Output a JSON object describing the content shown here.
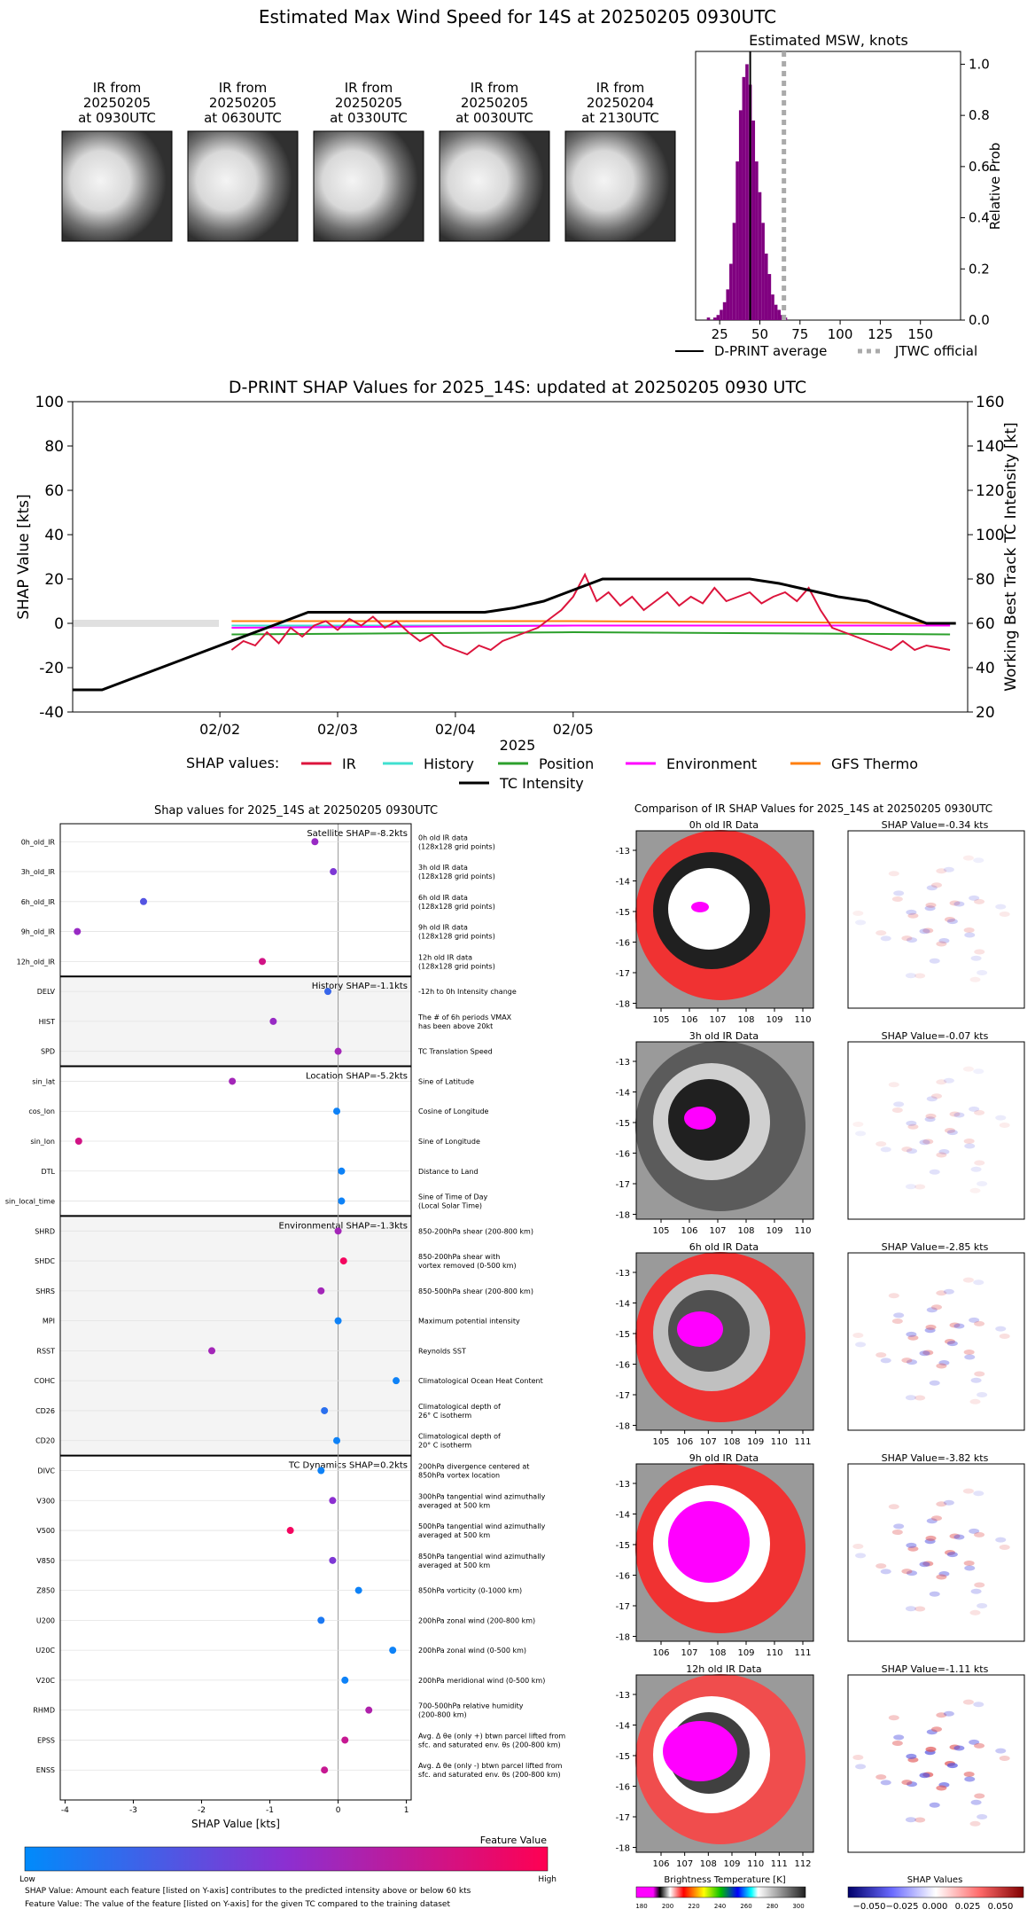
{
  "header": {
    "title": "Estimated Max Wind Speed for 14S at 20250205 0930UTC"
  },
  "ir_thumbs": [
    {
      "l1": "IR from",
      "l2": "20250205",
      "l3": "at 0930UTC"
    },
    {
      "l1": "IR from",
      "l2": "20250205",
      "l3": "at 0630UTC"
    },
    {
      "l1": "IR from",
      "l2": "20250205",
      "l3": "at 0330UTC"
    },
    {
      "l1": "IR from",
      "l2": "20250205",
      "l3": "at 0030UTC"
    },
    {
      "l1": "IR from",
      "l2": "20250204",
      "l3": "at 2130UTC"
    }
  ],
  "msw": {
    "title": "Estimated MSW, knots",
    "ylabel": "Relative Prob",
    "xticks": [
      "25",
      "50",
      "75",
      "100",
      "125",
      "150"
    ],
    "yticks": [
      "0.0",
      "0.2",
      "0.4",
      "0.6",
      "0.8",
      "1.0"
    ],
    "legend_avg": "D-PRINT average",
    "legend_jtwc": "JTWC official"
  },
  "shap_ts": {
    "title": "D-PRINT SHAP Values for 2025_14S: updated at 20250205 0930 UTC",
    "ylabel_left": "SHAP Value [kts]",
    "ylabel_right": "Working Best Track TC Intensity [kt]",
    "xlabel": "2025",
    "yticks_left": [
      "100",
      "80",
      "60",
      "40",
      "20",
      "0",
      "-20",
      "-40"
    ],
    "yticks_right": [
      "160",
      "140",
      "120",
      "100",
      "80",
      "60",
      "40",
      "20"
    ],
    "xticks": [
      "02/02",
      "02/03",
      "02/04",
      "02/05"
    ],
    "legend_title": "SHAP values:",
    "legend": [
      {
        "label": "IR",
        "color": "#dc143c"
      },
      {
        "label": "History",
        "color": "#40e0d0"
      },
      {
        "label": "Position",
        "color": "#2ca02c"
      },
      {
        "label": "Environment",
        "color": "#ff00ff"
      },
      {
        "label": "GFS Thermo",
        "color": "#ff7f0e"
      },
      {
        "label": "TC Intensity",
        "color": "#000000"
      }
    ]
  },
  "shap_feat": {
    "title": "Shap values for 2025_14S at 20250205 0930UTC",
    "xlabel": "SHAP Value [kts]",
    "xticks": [
      "-4",
      "-3",
      "-2",
      "-1",
      "0",
      "1"
    ],
    "groups": [
      {
        "label": "Satellite SHAP=-8.2kts"
      },
      {
        "label": "History SHAP=-1.1kts"
      },
      {
        "label": "Location SHAP=-5.2kts"
      },
      {
        "label": "Environmental SHAP=-1.3kts"
      },
      {
        "label": "TC Dynamics SHAP=0.2kts"
      }
    ],
    "features": [
      {
        "name": "0h_old_IR",
        "d1": "0h old IR data",
        "d2": "(128x128 grid points)"
      },
      {
        "name": "3h_old_IR",
        "d1": "3h old IR data",
        "d2": "(128x128 grid points)"
      },
      {
        "name": "6h_old_IR",
        "d1": "6h old IR data",
        "d2": "(128x128 grid points)"
      },
      {
        "name": "9h_old_IR",
        "d1": "9h old IR data",
        "d2": "(128x128 grid points)"
      },
      {
        "name": "12h_old_IR",
        "d1": "12h old IR data",
        "d2": "(128x128 grid points)"
      },
      {
        "name": "DELV",
        "d1": "-12h to 0h Intensity change",
        "d2": ""
      },
      {
        "name": "HIST",
        "d1": "The # of 6h periods VMAX",
        "d2": "has been above 20kt"
      },
      {
        "name": "SPD",
        "d1": "TC Translation Speed",
        "d2": ""
      },
      {
        "name": "sin_lat",
        "d1": "Sine of Latitude",
        "d2": ""
      },
      {
        "name": "cos_lon",
        "d1": "Cosine of Longitude",
        "d2": ""
      },
      {
        "name": "sin_lon",
        "d1": "Sine of Longitude",
        "d2": ""
      },
      {
        "name": "DTL",
        "d1": "Distance to Land",
        "d2": ""
      },
      {
        "name": "sin_local_time",
        "d1": "Sine of Time of Day",
        "d2": "(Local Solar Time)"
      },
      {
        "name": "SHRD",
        "d1": "850-200hPa shear (200-800 km)",
        "d2": ""
      },
      {
        "name": "SHDC",
        "d1": "850-200hPa shear with",
        "d2": "vortex removed (0-500 km)"
      },
      {
        "name": "SHRS",
        "d1": "850-500hPa shear (200-800 km)",
        "d2": ""
      },
      {
        "name": "MPI",
        "d1": "Maximum potential intensity",
        "d2": ""
      },
      {
        "name": "RSST",
        "d1": "Reynolds SST",
        "d2": ""
      },
      {
        "name": "COHC",
        "d1": "Climatological Ocean Heat Content",
        "d2": ""
      },
      {
        "name": "CD26",
        "d1": "Climatological depth of",
        "d2": "26° C isotherm"
      },
      {
        "name": "CD20",
        "d1": "Climatological depth of",
        "d2": "20° C isotherm"
      },
      {
        "name": "DIVC",
        "d1": "200hPa divergence centered at",
        "d2": "850hPa vortex location"
      },
      {
        "name": "V300",
        "d1": "300hPa tangential wind azimuthally",
        "d2": "averaged at 500 km"
      },
      {
        "name": "V500",
        "d1": "500hPa tangential wind azimuthally",
        "d2": "averaged at 500 km"
      },
      {
        "name": "V850",
        "d1": "850hPa tangential wind azimuthally",
        "d2": "averaged at 500 km"
      },
      {
        "name": "Z850",
        "d1": "850hPa vorticity (0-1000 km)",
        "d2": ""
      },
      {
        "name": "U200",
        "d1": "200hPa zonal wind (200-800 km)",
        "d2": ""
      },
      {
        "name": "U20C",
        "d1": "200hPa zonal wind (0-500 km)",
        "d2": ""
      },
      {
        "name": "V20C",
        "d1": "200hPa meridional wind (0-500 km)",
        "d2": ""
      },
      {
        "name": "RHMD",
        "d1": "700-500hPa relative humidity",
        "d2": "(200-800 km)"
      },
      {
        "name": "EPSS",
        "d1": "Avg. Δ θe (only +) btwn parcel lifted from",
        "d2": "sfc. and saturated env. θs (200-800 km)"
      },
      {
        "name": "ENSS",
        "d1": "Avg. Δ θe (only -) btwn parcel lifted from",
        "d2": "sfc. and saturated env. θs (200-800 km)"
      }
    ],
    "colorbar_title": "Feature Value",
    "colorbar_low": "Low",
    "colorbar_high": "High",
    "footnote1": "SHAP Value: Amount each feature [listed on Y-axis] contributes to the predicted intensity above or below 60 kts",
    "footnote2": "Feature Value: The value of the feature [listed on Y-axis] for the given TC compared to the training dataset"
  },
  "ir_compare": {
    "title": "Comparison of IR SHAP Values for 2025_14S at 20250205 0930UTC",
    "rows": [
      {
        "ir_title": "0h old IR Data",
        "shap_title": "SHAP Value=-0.34 kts",
        "xticks": [
          "105",
          "106",
          "107",
          "108",
          "109",
          "110"
        ]
      },
      {
        "ir_title": "3h old IR Data",
        "shap_title": "SHAP Value=-0.07 kts",
        "xticks": [
          "105",
          "106",
          "107",
          "108",
          "109",
          "110"
        ]
      },
      {
        "ir_title": "6h old IR Data",
        "shap_title": "SHAP Value=-2.85 kts",
        "xticks": [
          "105",
          "106",
          "107",
          "108",
          "109",
          "110",
          "111"
        ]
      },
      {
        "ir_title": "9h old IR Data",
        "shap_title": "SHAP Value=-3.82 kts",
        "xticks": [
          "106",
          "107",
          "108",
          "109",
          "110",
          "111"
        ]
      },
      {
        "ir_title": "12h old IR Data",
        "shap_title": "SHAP Value=-1.11 kts",
        "xticks": [
          "106",
          "107",
          "108",
          "109",
          "110",
          "111",
          "112"
        ]
      }
    ],
    "yticks": [
      "-13",
      "-14",
      "-15",
      "-16",
      "-17",
      "-18"
    ],
    "cbar_bt_title": "Brightness Temperature [K]",
    "cbar_bt_ticks": [
      "180",
      "200",
      "220",
      "240",
      "260",
      "280",
      "300"
    ],
    "cbar_shap_title": "SHAP Values",
    "cbar_shap_ticks": [
      "−0.050",
      "−0.025",
      "0.000",
      "0.025",
      "0.050"
    ]
  },
  "chart_data": [
    {
      "type": "bar",
      "title": "Estimated MSW, knots",
      "xlabel": "",
      "ylabel": "Relative Prob",
      "xlim": [
        10,
        175
      ],
      "ylim": [
        0,
        1.05
      ],
      "bin_width": 2,
      "bins": [
        [
          18,
          0.01
        ],
        [
          22,
          0.01
        ],
        [
          24,
          0.02
        ],
        [
          26,
          0.04
        ],
        [
          28,
          0.07
        ],
        [
          30,
          0.12
        ],
        [
          32,
          0.22
        ],
        [
          34,
          0.38
        ],
        [
          36,
          0.62
        ],
        [
          38,
          0.82
        ],
        [
          40,
          0.95
        ],
        [
          42,
          1.0
        ],
        [
          44,
          0.92
        ],
        [
          46,
          0.78
        ],
        [
          48,
          0.62
        ],
        [
          50,
          0.5
        ],
        [
          52,
          0.38
        ],
        [
          54,
          0.26
        ],
        [
          56,
          0.18
        ],
        [
          58,
          0.1
        ],
        [
          60,
          0.06
        ],
        [
          62,
          0.04
        ],
        [
          64,
          0.02
        ],
        [
          66,
          0.01
        ]
      ],
      "dprint_average": 44,
      "jtwc_official": 65
    },
    {
      "type": "line",
      "title": "D-PRINT SHAP Values for 2025_14S: updated at 20250205 0930 UTC",
      "xlabel": "2025",
      "ylabel": "SHAP Value [kts]",
      "ylim": [
        -40,
        100
      ],
      "y2label": "Working Best Track TC Intensity [kt]",
      "y2lim": [
        20,
        160
      ],
      "x_unit": "days since 02/02 00UTC",
      "series": [
        {
          "name": "TC Intensity",
          "axis": "right",
          "points": [
            [
              -1.25,
              30
            ],
            [
              -1.0,
              30
            ],
            [
              -0.75,
              35
            ],
            [
              -0.5,
              40
            ],
            [
              -0.25,
              45
            ],
            [
              0.0,
              50
            ],
            [
              0.25,
              55
            ],
            [
              0.5,
              60
            ],
            [
              0.75,
              65
            ],
            [
              1.0,
              65
            ],
            [
              1.25,
              65
            ],
            [
              1.5,
              65
            ],
            [
              1.75,
              65
            ],
            [
              2.0,
              65
            ],
            [
              2.25,
              65
            ],
            [
              2.5,
              67
            ],
            [
              2.75,
              70
            ],
            [
              3.0,
              75
            ],
            [
              3.25,
              80
            ],
            [
              3.5,
              80
            ],
            [
              3.75,
              80
            ],
            [
              4.0,
              80
            ],
            [
              4.25,
              80
            ],
            [
              4.5,
              80
            ],
            [
              4.75,
              78
            ],
            [
              5.0,
              75
            ],
            [
              5.25,
              72
            ],
            [
              5.5,
              70
            ],
            [
              5.75,
              65
            ],
            [
              6.0,
              60
            ],
            [
              6.25,
              60
            ]
          ]
        },
        {
          "name": "IR",
          "axis": "left",
          "points": [
            [
              0.1,
              -12
            ],
            [
              0.2,
              -8
            ],
            [
              0.3,
              -10
            ],
            [
              0.4,
              -4
            ],
            [
              0.5,
              -9
            ],
            [
              0.6,
              -2
            ],
            [
              0.7,
              -6
            ],
            [
              0.8,
              -1
            ],
            [
              0.9,
              1
            ],
            [
              1.0,
              -3
            ],
            [
              1.1,
              2
            ],
            [
              1.2,
              -1
            ],
            [
              1.3,
              3
            ],
            [
              1.4,
              -2
            ],
            [
              1.5,
              1
            ],
            [
              1.6,
              -4
            ],
            [
              1.7,
              -8
            ],
            [
              1.8,
              -5
            ],
            [
              1.9,
              -10
            ],
            [
              2.0,
              -12
            ],
            [
              2.1,
              -14
            ],
            [
              2.2,
              -10
            ],
            [
              2.3,
              -12
            ],
            [
              2.4,
              -8
            ],
            [
              2.5,
              -6
            ],
            [
              2.6,
              -4
            ],
            [
              2.7,
              -2
            ],
            [
              2.8,
              2
            ],
            [
              2.9,
              6
            ],
            [
              3.0,
              12
            ],
            [
              3.1,
              22
            ],
            [
              3.2,
              10
            ],
            [
              3.3,
              14
            ],
            [
              3.4,
              8
            ],
            [
              3.5,
              12
            ],
            [
              3.6,
              6
            ],
            [
              3.7,
              10
            ],
            [
              3.8,
              14
            ],
            [
              3.9,
              8
            ],
            [
              4.0,
              12
            ],
            [
              4.1,
              9
            ],
            [
              4.2,
              16
            ],
            [
              4.3,
              10
            ],
            [
              4.4,
              12
            ],
            [
              4.5,
              14
            ],
            [
              4.6,
              9
            ],
            [
              4.7,
              12
            ],
            [
              4.8,
              14
            ],
            [
              4.9,
              10
            ],
            [
              5.0,
              16
            ],
            [
              5.1,
              6
            ],
            [
              5.2,
              -2
            ],
            [
              5.3,
              -4
            ],
            [
              5.4,
              -6
            ],
            [
              5.5,
              -8
            ],
            [
              5.6,
              -10
            ],
            [
              5.7,
              -12
            ],
            [
              5.8,
              -8
            ],
            [
              5.9,
              -12
            ],
            [
              6.0,
              -10
            ],
            [
              6.1,
              -11
            ],
            [
              6.2,
              -12
            ]
          ]
        },
        {
          "name": "History",
          "axis": "left",
          "points": [
            [
              0.1,
              -1
            ],
            [
              6.2,
              -1
            ]
          ]
        },
        {
          "name": "Position",
          "axis": "left",
          "points": [
            [
              0.1,
              -5
            ],
            [
              3.0,
              -4
            ],
            [
              6.2,
              -5
            ]
          ]
        },
        {
          "name": "Environment",
          "axis": "left",
          "points": [
            [
              0.1,
              -2
            ],
            [
              3.0,
              -1
            ],
            [
              6.2,
              -1
            ]
          ]
        },
        {
          "name": "GFS Thermo",
          "axis": "left",
          "points": [
            [
              0.1,
              1
            ],
            [
              3.0,
              1
            ],
            [
              6.2,
              0
            ]
          ]
        }
      ]
    },
    {
      "type": "scatter",
      "title": "Shap values for 2025_14S at 20250205 0930UTC",
      "xlabel": "SHAP Value [kts]",
      "xlim": [
        -4,
        1
      ],
      "categories": [
        "0h_old_IR",
        "3h_old_IR",
        "6h_old_IR",
        "9h_old_IR",
        "12h_old_IR",
        "DELV",
        "HIST",
        "SPD",
        "sin_lat",
        "cos_lon",
        "sin_lon",
        "DTL",
        "sin_local_time",
        "SHRD",
        "SHDC",
        "SHRS",
        "MPI",
        "RSST",
        "COHC",
        "CD26",
        "CD20",
        "DIVC",
        "V300",
        "V500",
        "V850",
        "Z850",
        "U200",
        "U20C",
        "V20C",
        "RHMD",
        "EPSS",
        "ENSS"
      ],
      "values": [
        -0.34,
        -0.07,
        -2.85,
        -3.82,
        -1.11,
        -0.15,
        -0.95,
        0.0,
        -1.55,
        -0.02,
        -3.8,
        0.05,
        0.05,
        0.0,
        0.08,
        -0.25,
        0.0,
        -1.85,
        0.85,
        -0.2,
        -0.02,
        -0.25,
        -0.08,
        -0.7,
        -0.08,
        0.3,
        -0.25,
        0.8,
        0.1,
        0.45,
        0.1,
        -0.2
      ],
      "feature_value": [
        0.55,
        0.45,
        0.3,
        0.55,
        0.8,
        0.2,
        0.55,
        0.6,
        0.6,
        0.05,
        0.8,
        0.05,
        0.05,
        0.6,
        0.95,
        0.6,
        0.05,
        0.6,
        0.05,
        0.15,
        0.05,
        0.05,
        0.5,
        0.95,
        0.45,
        0.05,
        0.1,
        0.05,
        0.05,
        0.65,
        0.75,
        0.75
      ]
    }
  ]
}
